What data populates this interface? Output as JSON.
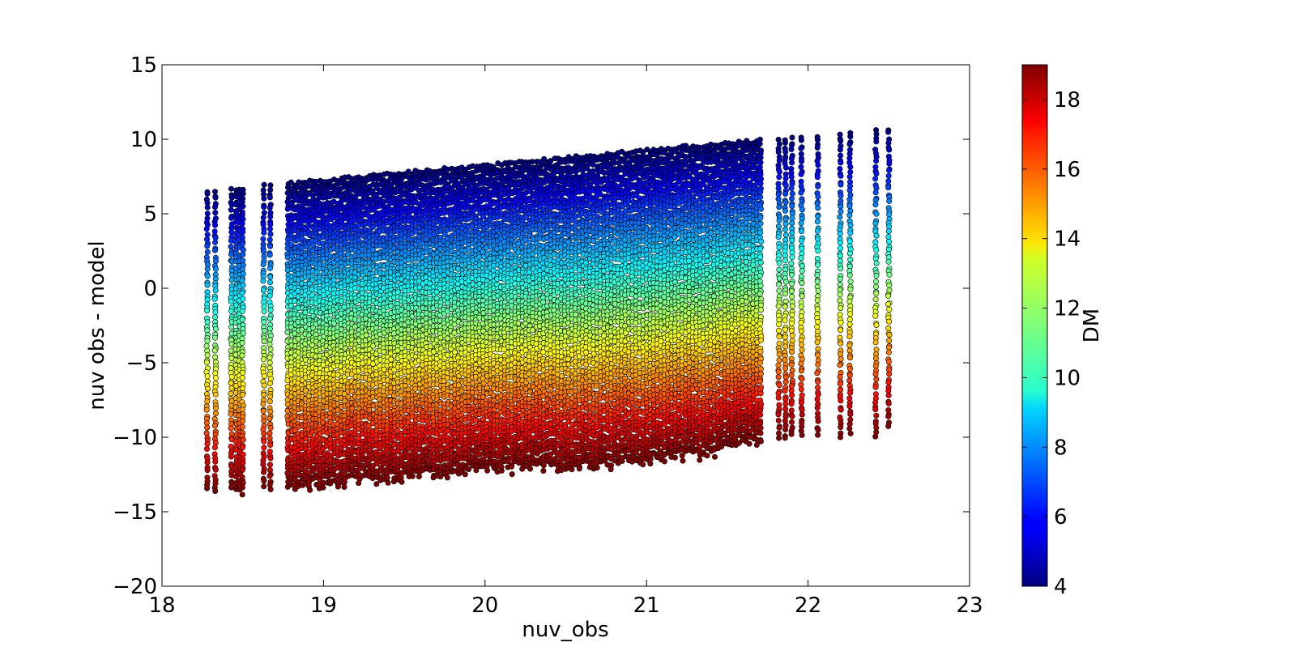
{
  "chart_data": {
    "type": "scatter",
    "title": "",
    "xlabel": "nuv_obs",
    "ylabel": "nuv obs - model",
    "xlim": [
      18,
      23
    ],
    "ylim": [
      -20,
      15
    ],
    "xticks": [
      18,
      19,
      20,
      21,
      22,
      23
    ],
    "yticks": [
      15,
      10,
      5,
      0,
      -5,
      -10,
      -15,
      -20
    ],
    "grid": false,
    "colorbar": {
      "label": "DM",
      "range": [
        4,
        19
      ],
      "ticks": [
        4,
        6,
        8,
        10,
        12,
        14,
        16,
        18
      ],
      "colormap": "jet"
    },
    "series_description_values": {
      "x_min": 18.28,
      "x_max": 22.5,
      "upper_envelope": [
        [
          18.28,
          6.5
        ],
        [
          18.8,
          7.0
        ],
        [
          19.2,
          7.4
        ],
        [
          19.6,
          7.8
        ],
        [
          20.0,
          8.2
        ],
        [
          20.5,
          8.7
        ],
        [
          21.0,
          9.2
        ],
        [
          21.5,
          9.7
        ],
        [
          21.7,
          9.9
        ],
        [
          22.0,
          10.2
        ],
        [
          22.5,
          10.7
        ]
      ],
      "lower_envelope": [
        [
          18.28,
          -14.0
        ],
        [
          18.8,
          -13.9
        ],
        [
          19.2,
          -13.2
        ],
        [
          19.6,
          -12.9
        ],
        [
          20.0,
          -12.4
        ],
        [
          20.5,
          -12.3
        ],
        [
          21.0,
          -12.0
        ],
        [
          21.5,
          -11.2
        ],
        [
          21.7,
          -10.5
        ],
        [
          22.0,
          -10.7
        ],
        [
          22.5,
          -10.1
        ]
      ],
      "dm_at_top": 4,
      "dm_at_bottom": 19
    },
    "sparse_columns_x": [
      18.28,
      18.33,
      18.43,
      18.46,
      18.48,
      18.5,
      18.63,
      18.67,
      21.82,
      21.86,
      21.9,
      21.96,
      22.06,
      22.2,
      22.26,
      22.42,
      22.5
    ]
  }
}
